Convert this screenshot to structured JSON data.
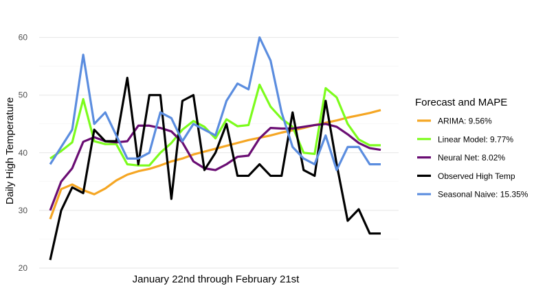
{
  "chart_data": {
    "type": "line",
    "xlabel": "January 22nd through February 21st",
    "ylabel": "Daily High Temperature",
    "ylim": [
      20,
      61.5
    ],
    "yticks": [
      20,
      30,
      40,
      50,
      60
    ],
    "x": [
      1,
      2,
      3,
      4,
      5,
      6,
      7,
      8,
      9,
      10,
      11,
      12,
      13,
      14,
      15,
      16,
      17,
      18,
      19,
      20,
      21,
      22,
      23,
      24,
      25,
      26,
      27,
      28,
      29,
      30,
      31
    ],
    "grid": true,
    "legend": {
      "title": "Forecast and MAPE",
      "position": "right"
    },
    "series": [
      {
        "name": "ARIMA: 9.56%",
        "color": "#f5a623",
        "values": [
          28.5,
          33.7,
          34.5,
          33.5,
          32.8,
          33.8,
          35.2,
          36.2,
          36.8,
          37.2,
          37.8,
          38.5,
          39.0,
          39.7,
          40.2,
          40.7,
          41.2,
          41.7,
          42.2,
          42.6,
          43.0,
          43.5,
          43.9,
          44.3,
          44.8,
          45.2,
          45.6,
          46.1,
          46.5,
          46.9,
          47.4
        ]
      },
      {
        "name": "Linear Model: 9.77%",
        "color": "#7cfc1c",
        "values": [
          39.0,
          40.3,
          41.8,
          49.3,
          42.0,
          41.5,
          41.5,
          38.0,
          37.8,
          37.8,
          40.0,
          41.7,
          44.0,
          45.5,
          44.5,
          42.5,
          45.8,
          44.6,
          44.8,
          51.8,
          48.0,
          45.9,
          44.5,
          40.0,
          39.8,
          51.2,
          49.6,
          45.0,
          42.3,
          41.3,
          41.3
        ]
      },
      {
        "name": "Neural Net: 8.02%",
        "color": "#6a0d73",
        "values": [
          30.0,
          35.0,
          37.3,
          41.9,
          42.7,
          42.0,
          41.8,
          42.0,
          44.7,
          44.7,
          44.3,
          43.7,
          41.8,
          38.5,
          37.3,
          37.0,
          38.0,
          39.3,
          39.5,
          42.5,
          44.3,
          44.2,
          44.2,
          44.5,
          44.8,
          45.0,
          44.5,
          43.2,
          41.7,
          40.8,
          40.5
        ]
      },
      {
        "name": "Observed High Temp",
        "color": "#000000",
        "values": [
          21.4,
          30.0,
          34.0,
          33.0,
          44.0,
          42.0,
          42.0,
          53.0,
          38.0,
          50.0,
          50.0,
          32.0,
          49.0,
          50.0,
          37.0,
          40.0,
          45.0,
          36.0,
          36.0,
          38.0,
          36.0,
          36.0,
          47.0,
          37.0,
          36.0,
          49.0,
          38.0,
          28.2,
          30.2,
          26.0,
          26.0
        ]
      },
      {
        "name": "Seasonal Naive: 15.35%",
        "color": "#5b8ddf",
        "values": [
          38.0,
          41.0,
          44.0,
          57.0,
          45.0,
          47.0,
          43.0,
          39.0,
          39.0,
          40.0,
          47.0,
          46.0,
          42.0,
          45.0,
          44.0,
          43.0,
          49.0,
          52.0,
          51.0,
          60.0,
          56.0,
          47.0,
          41.0,
          39.0,
          38.0,
          43.0,
          37.0,
          41.0,
          41.0,
          38.0,
          38.0
        ]
      }
    ]
  }
}
